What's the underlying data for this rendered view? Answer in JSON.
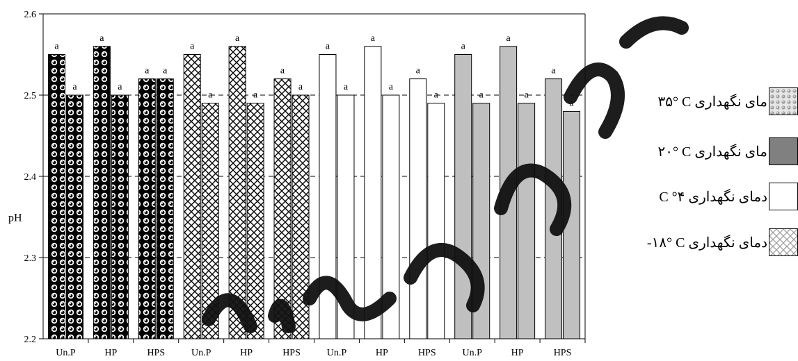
{
  "chart_data": {
    "type": "bar",
    "ylabel": "pH",
    "ylim": [
      2.2,
      2.6
    ],
    "yticks": [
      2.2,
      2.3,
      2.4,
      2.5,
      2.6
    ],
    "ytick_labels": [
      "2.2",
      "2.3",
      "2.4",
      "2.5",
      "2.6"
    ],
    "grid": "horizontal dashed",
    "legend_position": "right",
    "groups": [
      {
        "storage": "35",
        "pattern": "dark",
        "categories": [
          {
            "label": "Un.P",
            "bars": [
              {
                "value": 2.55,
                "letter": "a"
              },
              {
                "value": 2.5,
                "letter": "a"
              }
            ]
          },
          {
            "label": "HP",
            "bars": [
              {
                "value": 2.56,
                "letter": "a"
              },
              {
                "value": 2.5,
                "letter": "a"
              }
            ]
          },
          {
            "label": "HPS",
            "bars": [
              {
                "value": 2.52,
                "letter": "a"
              },
              {
                "value": 2.52,
                "letter": "a"
              }
            ]
          }
        ]
      },
      {
        "storage": "-18",
        "pattern": "cross",
        "categories": [
          {
            "label": "Un.P",
            "bars": [
              {
                "value": 2.55,
                "letter": "a"
              },
              {
                "value": 2.49,
                "letter": "a"
              }
            ]
          },
          {
            "label": "HP",
            "bars": [
              {
                "value": 2.56,
                "letter": "a"
              },
              {
                "value": 2.49,
                "letter": "a"
              }
            ]
          },
          {
            "label": "HPS",
            "bars": [
              {
                "value": 2.52,
                "letter": "a"
              },
              {
                "value": 2.5,
                "letter": "a"
              }
            ]
          }
        ]
      },
      {
        "storage": "4",
        "pattern": "white",
        "categories": [
          {
            "label": "Un.P",
            "bars": [
              {
                "value": 2.55,
                "letter": "a"
              },
              {
                "value": 2.5,
                "letter": "a"
              }
            ]
          },
          {
            "label": "HP",
            "bars": [
              {
                "value": 2.56,
                "letter": "a"
              },
              {
                "value": 2.5,
                "letter": "a"
              }
            ]
          },
          {
            "label": "HPS",
            "bars": [
              {
                "value": 2.52,
                "letter": "a"
              },
              {
                "value": 2.49,
                "letter": "a"
              }
            ]
          }
        ]
      },
      {
        "storage": "20",
        "pattern": "gray",
        "categories": [
          {
            "label": "Un.P",
            "bars": [
              {
                "value": 2.55,
                "letter": "a"
              },
              {
                "value": 2.49,
                "letter": "a"
              }
            ]
          },
          {
            "label": "HP",
            "bars": [
              {
                "value": 2.56,
                "letter": "a"
              },
              {
                "value": 2.49,
                "letter": "a"
              }
            ]
          },
          {
            "label": "HPS",
            "bars": [
              {
                "value": 2.52,
                "letter": "a"
              },
              {
                "value": 2.48,
                "letter": "a"
              }
            ]
          }
        ]
      }
    ],
    "legend": [
      {
        "label": "ﻣﺎی ﻧﮕﻬﺪاری C °٣۵",
        "pattern": "dots-light"
      },
      {
        "label": "ﻣﺎی ﻧﮕﻬﺪاری C °٢٠",
        "pattern": "gray"
      },
      {
        "label": "دﻣﺎی ﻧﮕﻬﺪاری  C °۴",
        "pattern": "white"
      },
      {
        "label": "دﻣﺎی ﻧﮕﻬﺪاری  C °١٨-",
        "pattern": "cross-light"
      }
    ],
    "colors": {
      "gray": "#c0c0c0",
      "dark": "#000000",
      "white": "#ffffff",
      "grid": "#000000"
    }
  }
}
